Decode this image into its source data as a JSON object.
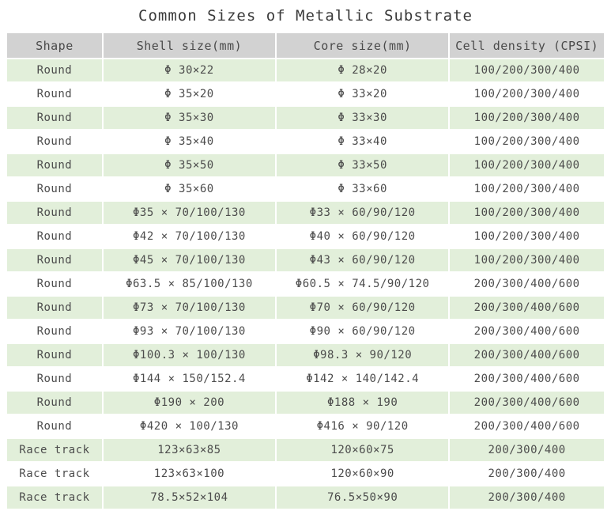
{
  "title": "Common Sizes of Metallic Substrate",
  "colors": {
    "header_bg": "#d2d2d2",
    "header_text": "#4a4a4a",
    "stripe_green": "#e2efda",
    "row_white": "#ffffff",
    "text": "#4c4c4c",
    "title_text": "#3a3a3a"
  },
  "table": {
    "columns": [
      "Shape",
      "Shell size(mm)",
      "Core size(mm)",
      "Cell density (CPSI)"
    ],
    "rows": [
      {
        "shape": "Round",
        "shell": "Φ 30×22",
        "core": "Φ 28×20",
        "density": "100/200/300/400"
      },
      {
        "shape": "Round",
        "shell": "Φ 35×20",
        "core": "Φ 33×20",
        "density": "100/200/300/400"
      },
      {
        "shape": "Round",
        "shell": "Φ 35×30",
        "core": "Φ 33×30",
        "density": "100/200/300/400"
      },
      {
        "shape": "Round",
        "shell": "Φ 35×40",
        "core": "Φ 33×40",
        "density": "100/200/300/400"
      },
      {
        "shape": "Round",
        "shell": "Φ 35×50",
        "core": "Φ 33×50",
        "density": "100/200/300/400"
      },
      {
        "shape": "Round",
        "shell": "Φ 35×60",
        "core": "Φ 33×60",
        "density": "100/200/300/400"
      },
      {
        "shape": "Round",
        "shell": "Φ35 × 70/100/130",
        "core": "Φ33 × 60/90/120",
        "density": "100/200/300/400"
      },
      {
        "shape": "Round",
        "shell": "Φ42 × 70/100/130",
        "core": "Φ40 × 60/90/120",
        "density": "100/200/300/400"
      },
      {
        "shape": "Round",
        "shell": "Φ45 × 70/100/130",
        "core": "Φ43 × 60/90/120",
        "density": "100/200/300/400"
      },
      {
        "shape": "Round",
        "shell": "Φ63.5 × 85/100/130",
        "core": "Φ60.5 × 74.5/90/120",
        "density": "200/300/400/600"
      },
      {
        "shape": "Round",
        "shell": "Φ73 × 70/100/130",
        "core": "Φ70 × 60/90/120",
        "density": "200/300/400/600"
      },
      {
        "shape": "Round",
        "shell": "Φ93 × 70/100/130",
        "core": "Φ90 × 60/90/120",
        "density": "200/300/400/600"
      },
      {
        "shape": "Round",
        "shell": "Φ100.3 × 100/130",
        "core": "Φ98.3 × 90/120",
        "density": "200/300/400/600"
      },
      {
        "shape": "Round",
        "shell": "Φ144 × 150/152.4",
        "core": "Φ142 × 140/142.4",
        "density": "200/300/400/600"
      },
      {
        "shape": "Round",
        "shell": "Φ190 × 200",
        "core": "Φ188 × 190",
        "density": "200/300/400/600"
      },
      {
        "shape": "Round",
        "shell": "Φ420 × 100/130",
        "core": "Φ416 × 90/120",
        "density": "200/300/400/600"
      },
      {
        "shape": "Race track",
        "shell": "123×63×85",
        "core": "120×60×75",
        "density": "200/300/400"
      },
      {
        "shape": "Race track",
        "shell": "123×63×100",
        "core": "120×60×90",
        "density": "200/300/400"
      },
      {
        "shape": "Race track",
        "shell": "78.5×52×104",
        "core": "76.5×50×90",
        "density": "200/300/400"
      }
    ]
  }
}
